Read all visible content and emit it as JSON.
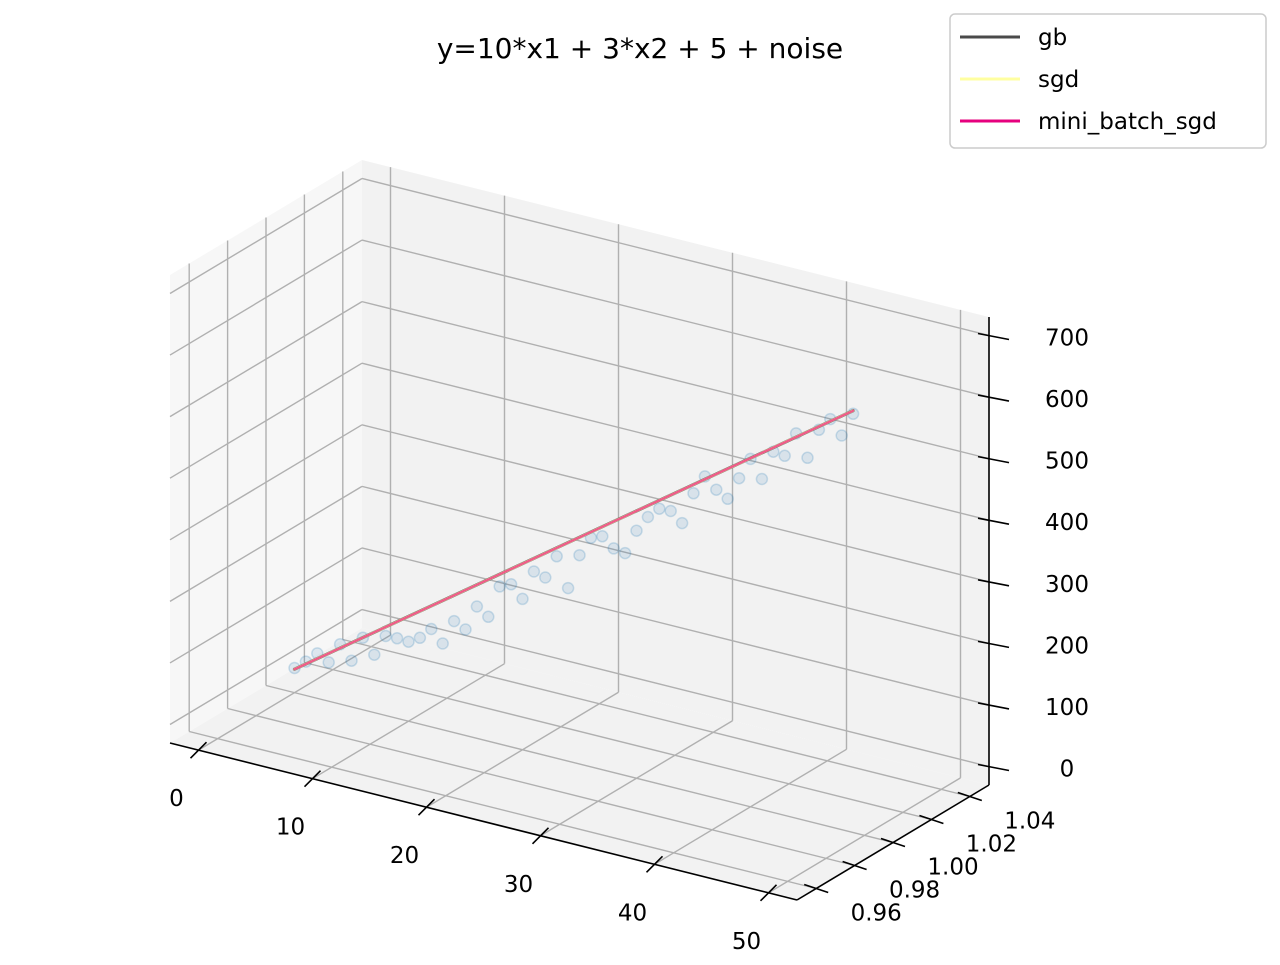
{
  "chart_data": {
    "type": "scatter",
    "projection": "3d",
    "title": "y=10*x1 + 3*x2 + 5 + noise",
    "xlabel": "",
    "ylabel": "",
    "zlabel": "",
    "grid": true,
    "legend_position": "top-right",
    "xlim": [
      -2.5,
      52.5
    ],
    "ylim": [
      0.95,
      1.05
    ],
    "zlim": [
      -30,
      730
    ],
    "x_ticks": [
      "0",
      "10",
      "20",
      "30",
      "40",
      "50"
    ],
    "y_ticks": [
      "0.96",
      "0.98",
      "1.00",
      "1.02",
      "1.04"
    ],
    "z_ticks": [
      "0",
      "100",
      "200",
      "300",
      "400",
      "500",
      "600",
      "700"
    ],
    "scatter": {
      "y_value": 1.0,
      "color": "#1f77b4",
      "x": [
        0,
        1,
        2,
        3,
        4,
        5,
        6,
        7,
        8,
        9,
        10,
        11,
        12,
        13,
        14,
        15,
        16,
        17,
        18,
        19,
        20,
        21,
        22,
        23,
        24,
        25,
        26,
        27,
        28,
        29,
        30,
        31,
        32,
        33,
        34,
        35,
        36,
        37,
        38,
        39,
        40,
        41,
        42,
        43,
        44,
        45,
        46,
        47,
        48,
        49
      ],
      "z": [
        10,
        25,
        43,
        33,
        67,
        45,
        87,
        64,
        99,
        100,
        99,
        110,
        129,
        110,
        151,
        142,
        184,
        172,
        226,
        234,
        215,
        264,
        259,
        298,
        251,
        309,
        342,
        349,
        334,
        331,
        372,
        399,
        417,
        418,
        403,
        456,
        488,
        471,
        461,
        499,
        535,
        507,
        556,
        554,
        595,
        560,
        610,
        632,
        610,
        650
      ]
    },
    "series": [
      {
        "name": "gb",
        "color": "#4a4a4a",
        "x": [
          0,
          49
        ],
        "z": [
          8,
          655
        ]
      },
      {
        "name": "sgd",
        "color": "#ffffa0",
        "x": [
          0,
          49
        ],
        "z": [
          8,
          655
        ]
      },
      {
        "name": "mini_batch_sgd",
        "color": "#e6007e",
        "x": [
          0,
          49
        ],
        "z": [
          8,
          655
        ]
      }
    ]
  }
}
